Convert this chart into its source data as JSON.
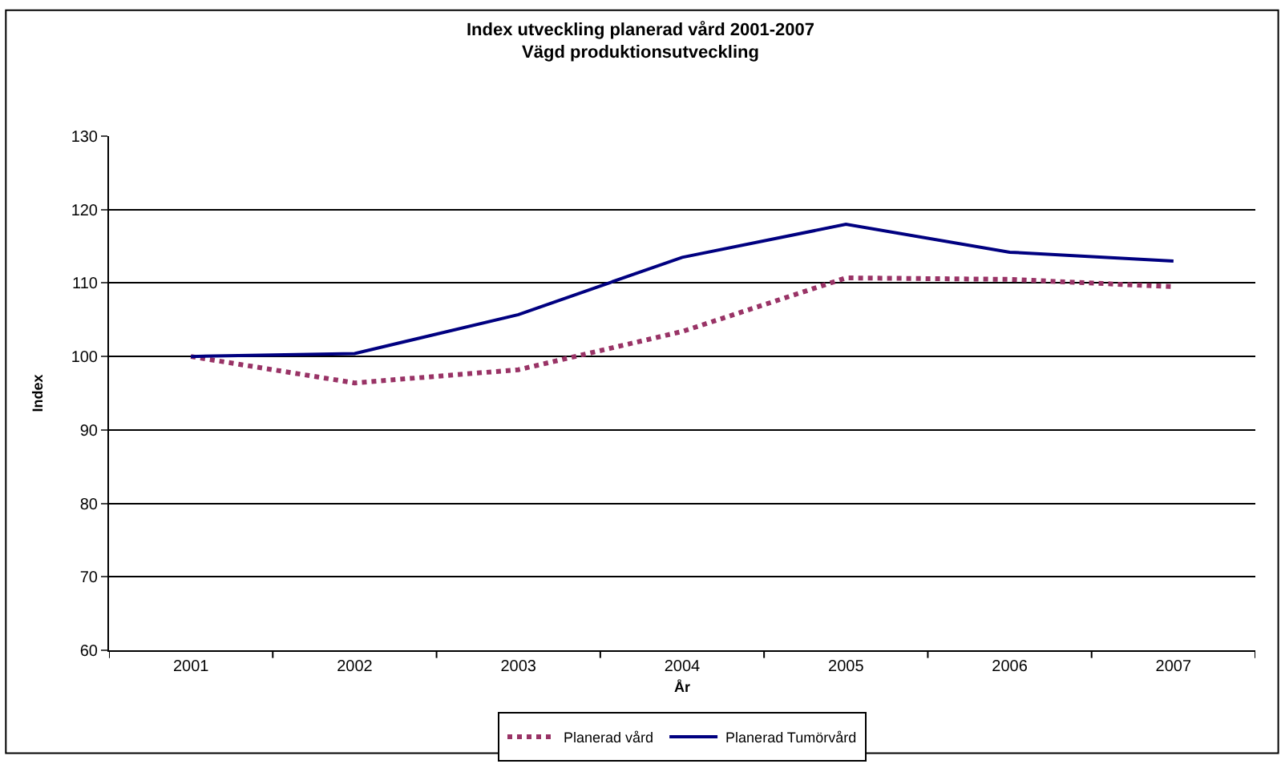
{
  "chart_data": {
    "type": "line",
    "title": "Index utveckling planerad vård 2001-2007\nVägd produktionsutveckling",
    "xlabel": "År",
    "ylabel": "Index",
    "categories": [
      "2001",
      "2002",
      "2003",
      "2004",
      "2005",
      "2006",
      "2007"
    ],
    "series": [
      {
        "name": "Planerad vård",
        "color": "#993366",
        "line_style": "dotted",
        "values": [
          100,
          96.4,
          98.2,
          103.4,
          110.7,
          110.5,
          109.5
        ]
      },
      {
        "name": "Planerad Tumörvård",
        "color": "#000080",
        "line_style": "solid",
        "values": [
          100,
          100.4,
          105.7,
          113.5,
          118.0,
          114.2,
          113.0
        ]
      }
    ],
    "ylim": [
      60,
      130
    ],
    "yticks": [
      60,
      70,
      80,
      90,
      100,
      110,
      120,
      130
    ],
    "grid": "y",
    "legend": "bottom",
    "marker": "none"
  }
}
